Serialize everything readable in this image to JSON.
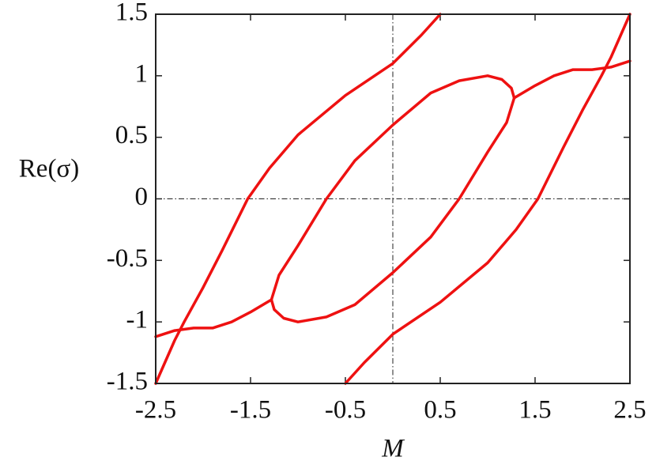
{
  "chart_data": {
    "type": "line",
    "xlabel": "M",
    "ylabel": "Re(σ)",
    "xlim": [
      -2.5,
      2.5
    ],
    "ylim": [
      -1.5,
      1.5
    ],
    "xticks": [
      -2.5,
      -1.5,
      -0.5,
      0.5,
      1.5,
      2.5
    ],
    "yticks": [
      -1.5,
      -1,
      -0.5,
      0,
      0.5,
      1,
      1.5
    ],
    "hlines": [
      0
    ],
    "vlines": [
      0
    ],
    "series": [
      {
        "color": "#ee1111",
        "x": [
          -2.5,
          -2.3,
          -2.2,
          -2.0,
          -1.8,
          -1.53,
          -1.3,
          -1.0,
          -0.5,
          0,
          0.3,
          0.5
        ],
        "values": [
          -1.5,
          -1.15,
          -1.0,
          -0.72,
          -0.42,
          0,
          0.25,
          0.52,
          0.84,
          1.1,
          1.33,
          1.5
        ]
      },
      {
        "color": "#ee1111",
        "x": [
          -0.5,
          -0.3,
          0,
          0.5,
          1.0,
          1.3,
          1.53,
          1.8,
          2.0,
          2.2,
          2.3,
          2.5
        ],
        "values": [
          -1.5,
          -1.33,
          -1.1,
          -0.84,
          -0.52,
          -0.25,
          0,
          0.42,
          0.72,
          1.0,
          1.15,
          1.5
        ]
      },
      {
        "color": "#ee1111",
        "x": [
          -2.5,
          -2.3,
          -2.1,
          -1.9,
          -1.7,
          -1.5,
          -1.28
        ],
        "values": [
          -1.12,
          -1.07,
          -1.05,
          -1.05,
          -1.0,
          -0.92,
          -0.82
        ]
      },
      {
        "color": "#ee1111",
        "x": [
          1.28,
          1.5,
          1.7,
          1.9,
          2.1,
          2.3,
          2.5
        ],
        "values": [
          0.82,
          0.92,
          1.0,
          1.05,
          1.05,
          1.07,
          1.12
        ]
      },
      {
        "color": "#ee1111",
        "x": [
          -1.28,
          -1.2,
          -1.0,
          -0.7,
          -0.4,
          0,
          0.4,
          0.7,
          1.0,
          1.15,
          1.25,
          1.28
        ],
        "values": [
          -0.82,
          -0.62,
          -0.38,
          0,
          0.31,
          0.6,
          0.86,
          0.96,
          1.0,
          0.97,
          0.9,
          0.82
        ]
      },
      {
        "color": "#ee1111",
        "x": [
          1.28,
          1.2,
          1.0,
          0.7,
          0.4,
          0,
          -0.4,
          -0.7,
          -1.0,
          -1.15,
          -1.25,
          -1.28
        ],
        "values": [
          0.82,
          0.62,
          0.38,
          0,
          -0.31,
          -0.6,
          -0.86,
          -0.96,
          -1.0,
          -0.97,
          -0.9,
          -0.82
        ]
      }
    ]
  }
}
